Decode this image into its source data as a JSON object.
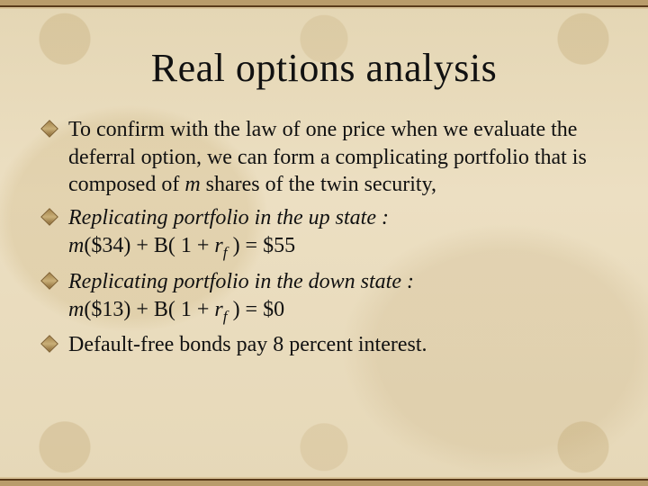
{
  "slide": {
    "title": "Real options analysis",
    "title_fontsize": 44,
    "title_color": "#111111",
    "body_fontsize": 24,
    "body_color": "#111111",
    "bullet_color": "#a3834a",
    "background_base": "#e8dcc0",
    "border_colors": [
      "#b99c6b",
      "#5a3b1a",
      "#d9c49a"
    ],
    "bullets": [
      {
        "text_html": "To confirm with the law of one price when we evaluate the deferral option, we can form a complicating portfolio that is composed of <span class=\"ital\">m</span> shares of the twin security,"
      },
      {
        "text_html": "<span class=\"ital\">Replicating portfolio in the up state :</span><br><span class=\"ital\">m</span>($34) + B( 1 + <span class=\"ital\">r<span class=\"sub\">f</span></span> ) = $55"
      },
      {
        "text_html": "<span class=\"ital\">Replicating portfolio in the down state :</span><br><span class=\"ital\">m</span>($13) + B( 1 + <span class=\"ital\">r<span class=\"sub\">f</span></span> ) = $0"
      },
      {
        "text_html": "Default-free bonds pay 8 percent interest."
      }
    ]
  }
}
